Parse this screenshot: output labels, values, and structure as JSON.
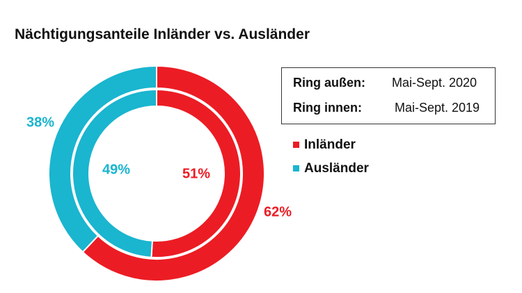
{
  "title": "Nächtigungsanteile Inländer vs. Ausländer",
  "legend_box": {
    "outer_label": "Ring außen:",
    "outer_value": "Mai-Sept. 2020",
    "inner_label": "Ring innen:",
    "inner_value": "Mai-Sept. 2019"
  },
  "chart_data": {
    "type": "pie",
    "variant": "nested-donut",
    "title": "Nächtigungsanteile Inländer vs. Ausländer",
    "legend_position": "right",
    "categories": [
      "Inländer",
      "Ausländer"
    ],
    "colors": [
      "#ec1c24",
      "#1ab5cf"
    ],
    "rings": [
      {
        "ring": "outer",
        "period": "Mai-Sept. 2020",
        "values": [
          62,
          38
        ],
        "labels": [
          "62%",
          "38%"
        ]
      },
      {
        "ring": "inner",
        "period": "Mai-Sept. 2019",
        "values": [
          51,
          49
        ],
        "labels": [
          "51%",
          "49%"
        ]
      }
    ]
  }
}
